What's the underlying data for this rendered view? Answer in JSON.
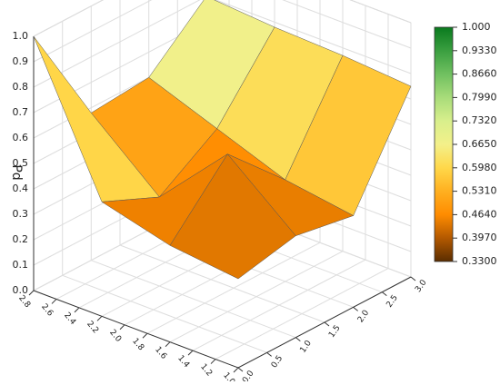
{
  "chart_data": {
    "type": "surface",
    "zlabel": "Pd",
    "x": [
      1.0,
      1.6,
      2.2,
      2.8
    ],
    "y": [
      0,
      1,
      2,
      3
    ],
    "z": [
      [
        0.35,
        0.4,
        0.36,
        0.75
      ],
      [
        0.38,
        0.62,
        0.4,
        0.77
      ],
      [
        0.45,
        0.35,
        0.5,
        0.78
      ],
      [
        1.0,
        0.58,
        0.6,
        0.8
      ]
    ],
    "xlim": [
      1.0,
      2.8
    ],
    "xticks": [
      {
        "value": 1.0,
        "label": "1.0"
      },
      {
        "value": 1.2,
        "label": "1.2"
      },
      {
        "value": 1.4,
        "label": "1.4"
      },
      {
        "value": 1.6,
        "label": "1.6"
      },
      {
        "value": 1.8,
        "label": "1.8"
      },
      {
        "value": 2.0,
        "label": "2.0"
      },
      {
        "value": 2.2,
        "label": "2.2"
      },
      {
        "value": 2.4,
        "label": "2.4"
      },
      {
        "value": 2.6,
        "label": "2.6"
      },
      {
        "value": 2.8,
        "label": "2.8"
      }
    ],
    "ylim": [
      0,
      3
    ],
    "yticks": [
      {
        "value": 0,
        "label": "0.0"
      },
      {
        "value": 0.5,
        "label": "0.5"
      },
      {
        "value": 1,
        "label": "1.0"
      },
      {
        "value": 1.5,
        "label": "1.5"
      },
      {
        "value": 2,
        "label": "2.0"
      },
      {
        "value": 2.5,
        "label": "2.5"
      },
      {
        "value": 3,
        "label": "3.0"
      }
    ],
    "zlim": [
      0,
      1
    ],
    "zticks": [
      {
        "value": 0,
        "label": "0.0"
      },
      {
        "value": 0.1,
        "label": "0.1"
      },
      {
        "value": 0.2,
        "label": "0.2"
      },
      {
        "value": 0.3,
        "label": "0.3"
      },
      {
        "value": 0.4,
        "label": "0.4"
      },
      {
        "value": 0.5,
        "label": "0.5"
      },
      {
        "value": 0.6,
        "label": "0.6"
      },
      {
        "value": 0.7,
        "label": "0.7"
      },
      {
        "value": 0.8,
        "label": "0.8"
      },
      {
        "value": 0.9,
        "label": "0.9"
      },
      {
        "value": 1.0,
        "label": "1.0"
      }
    ],
    "colorbar_ticks": [
      {
        "value": 0.33,
        "label": "0.3300"
      },
      {
        "value": 0.397,
        "label": "0.3970"
      },
      {
        "value": 0.464,
        "label": "0.4640"
      },
      {
        "value": 0.531,
        "label": "0.5310"
      },
      {
        "value": 0.598,
        "label": "0.5980"
      },
      {
        "value": 0.665,
        "label": "0.6650"
      },
      {
        "value": 0.732,
        "label": "0.7320"
      },
      {
        "value": 0.799,
        "label": "0.7990"
      },
      {
        "value": 0.866,
        "label": "0.8660"
      },
      {
        "value": 0.933,
        "label": "0.9330"
      },
      {
        "value": 1.0,
        "label": "1.000"
      }
    ],
    "colormap": [
      "#5a2d00",
      "#b35900",
      "#ff8c00",
      "#ffb020",
      "#ffd84a",
      "#f3f08a",
      "#d8ef8c",
      "#a8dc7a",
      "#70c060",
      "#3a9f40",
      "#0a7a1e"
    ]
  }
}
